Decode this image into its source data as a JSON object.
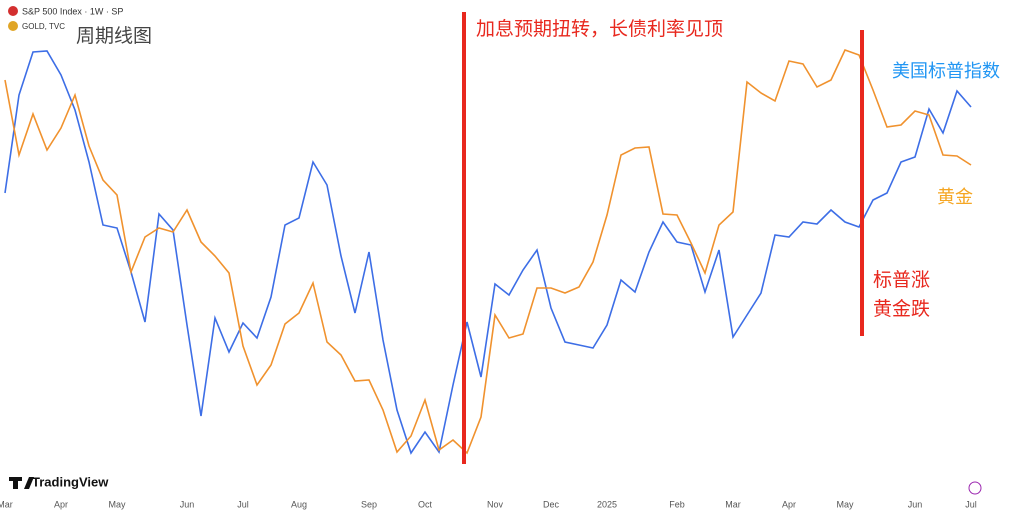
{
  "chart_data": {
    "type": "line",
    "title": "周期线图",
    "annotations": [
      "加息预期扭转，长债利率见顶",
      "美国标普指数",
      "黄金",
      "标普涨",
      "黄金跌"
    ],
    "brand": "TradingView",
    "x": [
      0,
      1,
      2,
      3,
      4,
      5,
      6,
      7,
      8,
      9,
      10,
      11,
      12,
      13,
      14,
      15,
      16,
      17,
      18,
      19,
      20,
      21,
      22,
      23,
      24,
      25,
      26,
      27,
      28,
      29,
      30,
      31,
      32,
      33,
      34,
      35,
      36,
      37,
      38,
      39,
      40,
      41,
      42,
      43,
      44,
      45,
      46,
      47,
      48,
      49,
      50,
      51,
      52,
      53,
      54,
      55,
      56,
      57,
      58,
      59,
      60,
      61,
      62,
      63,
      64,
      65,
      66,
      67,
      68,
      69
    ],
    "xlim": [
      0,
      69
    ],
    "xticks": [
      {
        "value": 0,
        "label": "Mar"
      },
      {
        "value": 4,
        "label": "Apr"
      },
      {
        "value": 8,
        "label": "May"
      },
      {
        "value": 13,
        "label": "Jun"
      },
      {
        "value": 17,
        "label": "Jul"
      },
      {
        "value": 21,
        "label": "Aug"
      },
      {
        "value": 26,
        "label": "Sep"
      },
      {
        "value": 30,
        "label": "Oct"
      },
      {
        "value": 35,
        "label": "Nov"
      },
      {
        "value": 39,
        "label": "Dec"
      },
      {
        "value": 43,
        "label": "2025"
      },
      {
        "value": 48,
        "label": "Feb"
      },
      {
        "value": 52,
        "label": "Mar"
      },
      {
        "value": 56,
        "label": "Apr"
      },
      {
        "value": 60,
        "label": "May"
      },
      {
        "value": 65,
        "label": "Jun"
      },
      {
        "value": 69,
        "label": "Jul"
      }
    ],
    "ylim": [
      0,
      500
    ],
    "series": [
      {
        "name": "S&P 500 Index · 1W · SP",
        "color": "#3d6ee6",
        "values": [
          307,
          405,
          448,
          449,
          425,
          390,
          338,
          275,
          272,
          228,
          178,
          286,
          270,
          175,
          84,
          182,
          148,
          177,
          162,
          203,
          275,
          282,
          338,
          315,
          244,
          187,
          248,
          160,
          90,
          47,
          68,
          48,
          115,
          178,
          123,
          216,
          205,
          230,
          250,
          192,
          158,
          155,
          152,
          175,
          220,
          208,
          248,
          278,
          258,
          255,
          208,
          250,
          163,
          185,
          207,
          265,
          263,
          278,
          276,
          290,
          278,
          273,
          300,
          307,
          338,
          343,
          391,
          367,
          409,
          393
        ]
      },
      {
        "name": "GOLD, TVC",
        "color": "#f0922e",
        "values": [
          420,
          345,
          386,
          350,
          372,
          405,
          354,
          320,
          305,
          228,
          263,
          272,
          268,
          290,
          258,
          244,
          227,
          154,
          115,
          135,
          176,
          187,
          217,
          158,
          145,
          119,
          120,
          90,
          48,
          64,
          100,
          50,
          60,
          47,
          83,
          185,
          162,
          166,
          212,
          212,
          207,
          213,
          238,
          285,
          345,
          352,
          353,
          286,
          285,
          257,
          227,
          275,
          288,
          418,
          407,
          399,
          439,
          436,
          413,
          420,
          450,
          445,
          410,
          373,
          375,
          389,
          385,
          345,
          344,
          335
        ]
      }
    ]
  }
}
